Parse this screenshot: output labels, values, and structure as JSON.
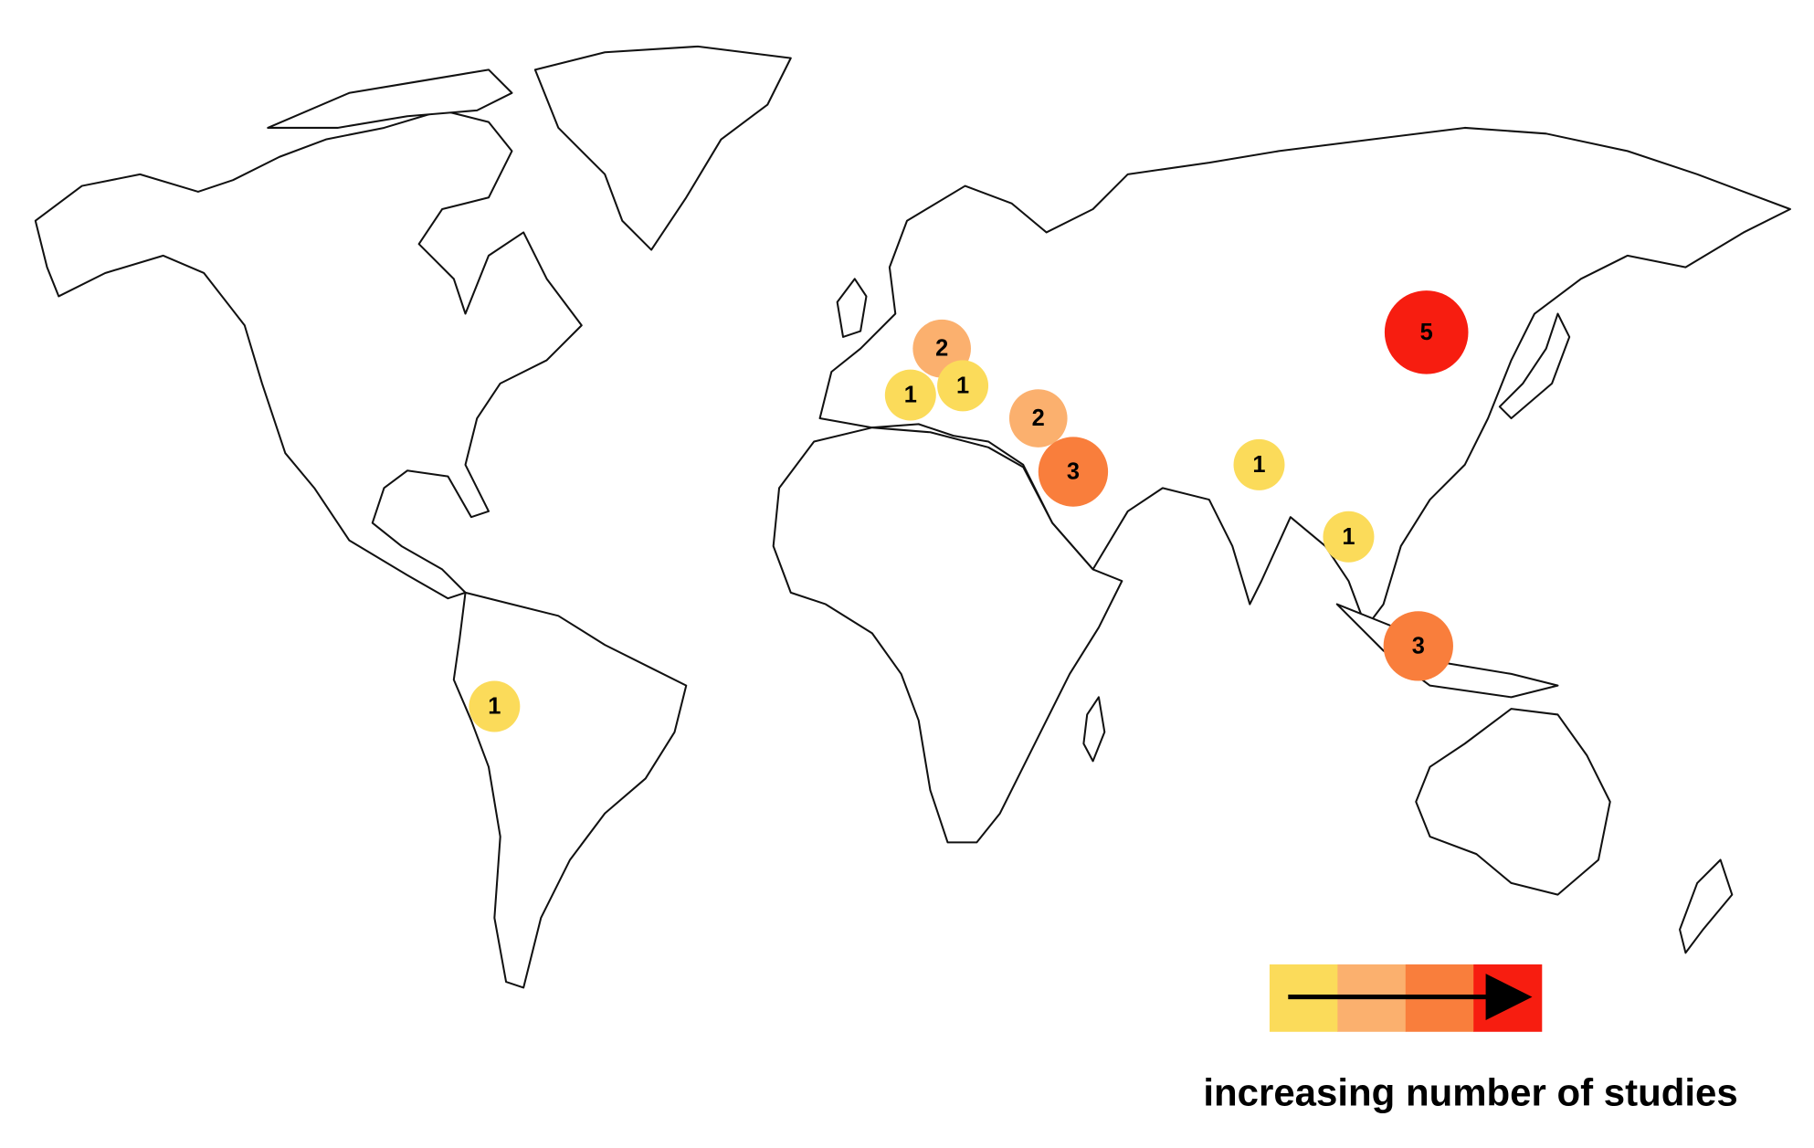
{
  "markers": [
    {
      "count": 1,
      "color": "#fbdb5a"
    },
    {
      "count": 2,
      "color": "#fbb06e"
    },
    {
      "count": 1,
      "color": "#fbdb5a"
    },
    {
      "count": 1,
      "color": "#fbdb5a"
    },
    {
      "count": 2,
      "color": "#fbb06e"
    },
    {
      "count": 3,
      "color": "#f97e3c"
    },
    {
      "count": 1,
      "color": "#fbdb5a"
    },
    {
      "count": 1,
      "color": "#fbdb5a"
    },
    {
      "count": 3,
      "color": "#f97e3c"
    },
    {
      "count": 5,
      "color": "#f71d10"
    }
  ],
  "legend": {
    "colors": [
      "#fbdb5a",
      "#fbb06e",
      "#f97e3c",
      "#f71d10"
    ],
    "caption": "increasing number of studies"
  }
}
